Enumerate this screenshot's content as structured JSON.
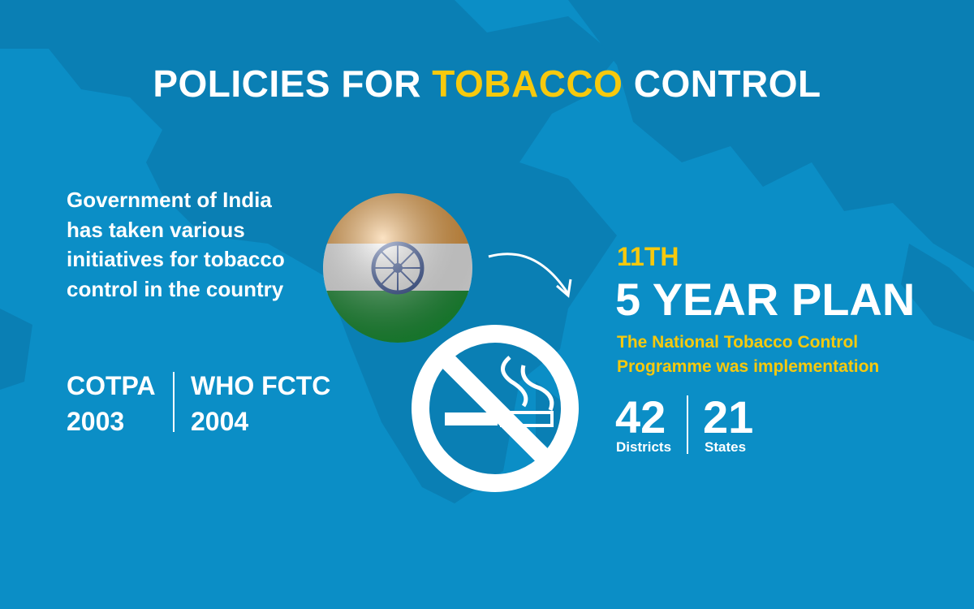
{
  "header": {
    "title_before": "POLICIES FOR",
    "title_highlight": "TOBACCO",
    "title_after": "CONTROL"
  },
  "intro": {
    "text": "Government of India has taken various initiatives for tobacco control in the country"
  },
  "acts": [
    {
      "name": "COTPA",
      "year": 2003
    },
    {
      "name": "WHO FCTC",
      "year": 2004
    }
  ],
  "plan": {
    "ordinal": "11TH",
    "title": "5 YEAR PLAN",
    "description": "The National Tobacco Control Programme was implementation"
  },
  "stats": [
    {
      "value": 42,
      "label": "Districts"
    },
    {
      "value": 21,
      "label": "States"
    }
  ]
}
